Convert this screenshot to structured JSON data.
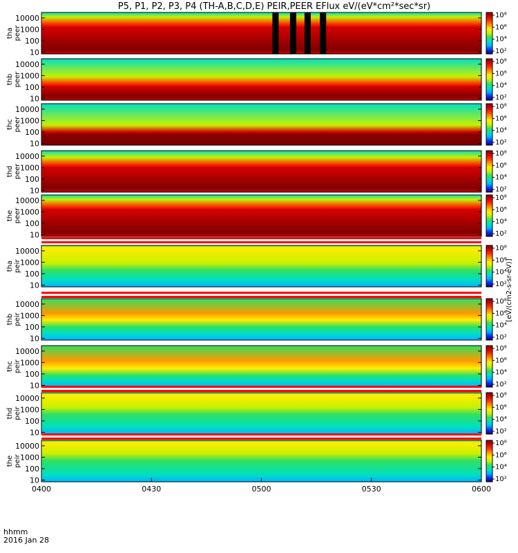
{
  "chart_data": {
    "type": "heatmap",
    "title": "P5, P1, P2, P3, P4 (TH-A,B,C,D,E) PEIR,PEER EFlux eV/(eV*cm²*sec*sr)",
    "x_label_line1": "hhmm",
    "x_label_line2": "2016 Jan 28",
    "x_ticks": [
      "0400",
      "0430",
      "0500",
      "0530",
      "0600"
    ],
    "x_range": [
      "0400",
      "0600"
    ],
    "y_scale": "log",
    "y_range": [
      7,
      30000
    ],
    "y_tick_values": [
      10,
      100,
      1000,
      10000
    ],
    "y_ticks": [
      "10",
      "100",
      "1000",
      "10000"
    ],
    "colorbar_ticks": [
      "10⁸",
      "10⁶",
      "10⁴",
      "10²"
    ],
    "colorbar_label": "[eV/(cm2-s-sr-eV)]",
    "panels": [
      {
        "probe": "tha",
        "species": "peer",
        "core_low": 15,
        "core_high": 3000,
        "peak": 8
      },
      {
        "probe": "thb",
        "species": "peer",
        "core_low": 15,
        "core_high": 200,
        "peak": 8
      },
      {
        "probe": "thc",
        "species": "peer",
        "core_low": 12,
        "core_high": 100,
        "peak": 9
      },
      {
        "probe": "thd",
        "species": "peer",
        "core_low": 15,
        "core_high": 2000,
        "peak": 8
      },
      {
        "probe": "the",
        "species": "peer",
        "core_low": 15,
        "core_high": 3000,
        "peak": 8
      },
      {
        "probe": "tha",
        "species": "peir",
        "core_low": 800,
        "core_high": 20000,
        "peak": 6
      },
      {
        "probe": "thb",
        "species": "peir",
        "core_low": 400,
        "core_high": 1500,
        "peak": 7
      },
      {
        "probe": "thc",
        "species": "peir",
        "core_low": 300,
        "core_high": 1500,
        "peak": 7
      },
      {
        "probe": "thd",
        "species": "peir",
        "core_low": 1500,
        "core_high": 20000,
        "peak": 6
      },
      {
        "probe": "the",
        "species": "peir",
        "core_low": 2000,
        "core_high": 20000,
        "peak": 6
      }
    ]
  },
  "colors": {
    "colormap": [
      "#1a0068",
      "#0033ff",
      "#00b4ff",
      "#00e0c0",
      "#30e060",
      "#c8f000",
      "#ffee00",
      "#ff9900",
      "#ff3300",
      "#d40000",
      "#800000"
    ],
    "gap_red": "#ff0000",
    "gap_white": "#ffffff",
    "data_gap_black": "#000000"
  }
}
